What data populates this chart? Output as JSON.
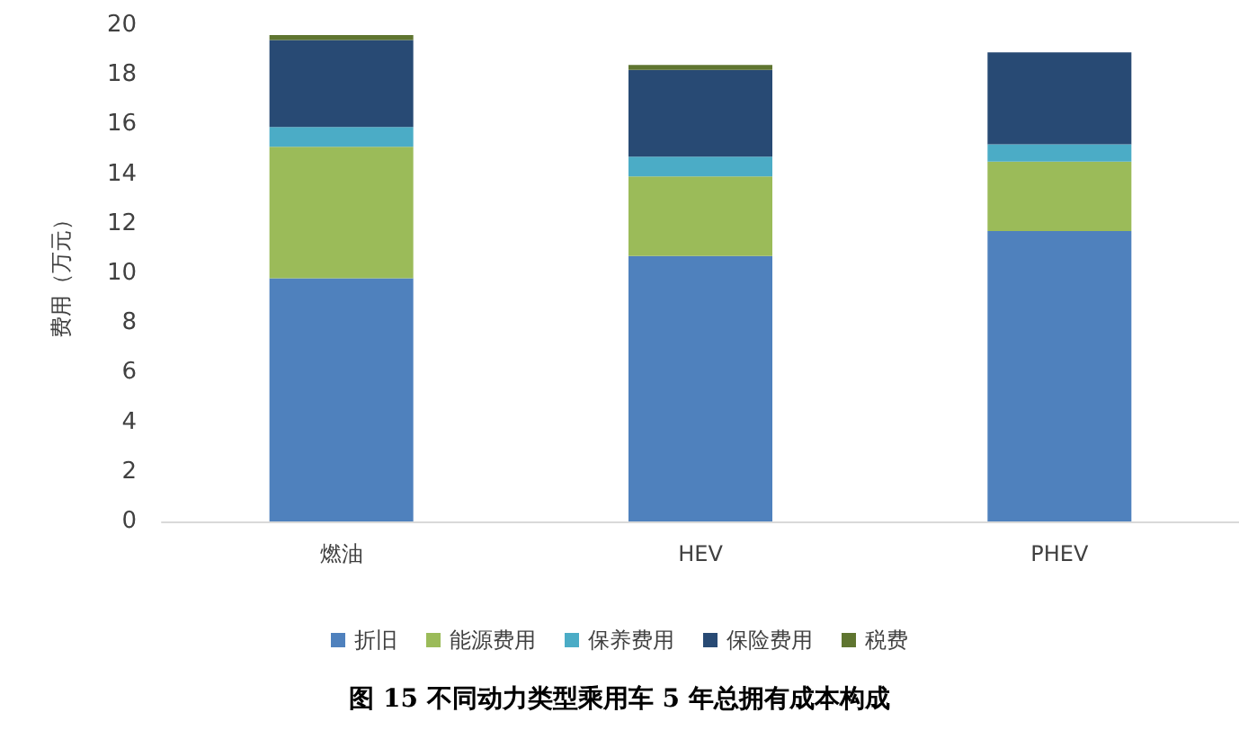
{
  "chart_data": {
    "type": "bar",
    "stacked": true,
    "title": "图 15 不同动力类型乘用车 5 年总拥有成本构成",
    "ylabel": "费用（万元）",
    "categories": [
      "燃油",
      "HEV",
      "PHEV"
    ],
    "series": [
      {
        "name": "折旧",
        "color": "#4f81bd",
        "values": [
          9.8,
          10.7,
          11.7
        ]
      },
      {
        "name": "能源费用",
        "color": "#9bbb59",
        "values": [
          5.3,
          3.2,
          2.8
        ]
      },
      {
        "name": "保养费用",
        "color": "#4bacc6",
        "values": [
          0.8,
          0.8,
          0.7
        ]
      },
      {
        "name": "保险费用",
        "color": "#284a74",
        "values": [
          3.5,
          3.5,
          3.7
        ]
      },
      {
        "name": "税费",
        "color": "#5f7530",
        "values": [
          0.2,
          0.2,
          null
        ]
      }
    ],
    "ylim": [
      0,
      20
    ],
    "yticks": [
      0,
      2,
      4,
      6,
      8,
      10,
      12,
      14,
      16,
      18,
      20
    ],
    "grid": false,
    "legend": "bottom"
  }
}
